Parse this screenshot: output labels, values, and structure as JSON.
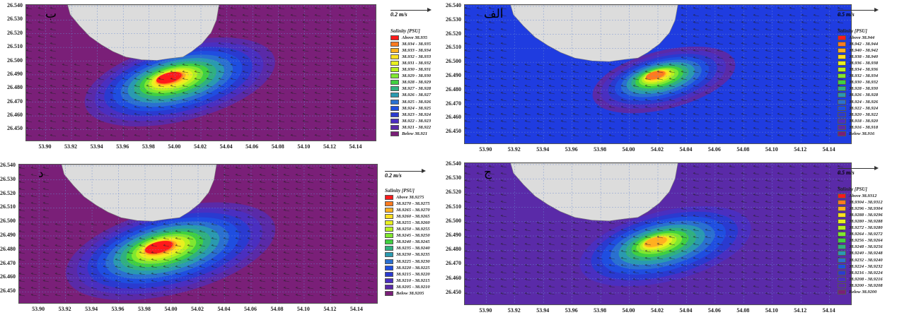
{
  "chart_data": [
    {
      "type": "heatmap",
      "panel_label": "ب",
      "xtick_labels": [
        "53.90",
        "53.92",
        "53.94",
        "53.96",
        "53.98",
        "54.00",
        "54.02",
        "54.04",
        "54.06",
        "54.08",
        "54.10",
        "54.12",
        "54.14"
      ],
      "ytick_labels": [
        "26.540",
        "26.530",
        "26.520",
        "26.510",
        "26.500",
        "26.490",
        "26.480",
        "26.470",
        "26.460",
        "26.450"
      ],
      "xlim": [
        53.885,
        54.155
      ],
      "ylim": [
        26.442,
        26.541
      ],
      "background_color": "#7a1f78",
      "hotspot": {
        "x": 53.995,
        "y": 26.488,
        "peak_level": 1.0,
        "spread": 1.0
      },
      "arrow_scale_label": "0.2 m/s",
      "legend_title": "Salinity [PSU]",
      "legend_entries": [
        "Above 38.935",
        "38.934 - 38.935",
        "38.933 - 38.934",
        "38.932 - 38.933",
        "38.931 - 38.932",
        "38.930 - 38.931",
        "38.929 - 38.930",
        "38.928 - 38.929",
        "38.927 - 38.928",
        "38.926 - 38.927",
        "38.925 - 38.926",
        "38.924 - 38.925",
        "38.923 - 38.924",
        "38.922 - 38.923",
        "38.921 - 38.922",
        "Below 38.921"
      ]
    },
    {
      "type": "heatmap",
      "panel_label": "الف",
      "xtick_labels": [
        "53.90",
        "53.92",
        "53.94",
        "53.96",
        "53.98",
        "54.00",
        "54.02",
        "54.04",
        "54.06",
        "54.08",
        "54.10",
        "54.12",
        "54.14"
      ],
      "ytick_labels": [
        "26.540",
        "26.530",
        "26.520",
        "26.510",
        "26.500",
        "26.490",
        "26.480",
        "26.470",
        "26.460",
        "26.450"
      ],
      "xlim": [
        53.885,
        54.155
      ],
      "ylim": [
        26.442,
        26.541
      ],
      "background_color": "#1f3ce0",
      "hotspot": {
        "x": 54.018,
        "y": 26.491,
        "peak_level": 0.85,
        "spread": 0.75
      },
      "arrow_scale_label": "0.5 m/s",
      "legend_title": "Salinity [PSU]",
      "legend_entries": [
        "Above 38.944",
        "38.942 - 38.944",
        "38.940 - 38.942",
        "38.938 - 38.940",
        "38.936 - 38.938",
        "38.934 - 38.936",
        "38.932 - 38.934",
        "38.930 - 38.932",
        "38.928 - 38.930",
        "38.926 - 38.928",
        "38.924 - 38.926",
        "38.922 - 38.924",
        "38.920 - 38.922",
        "38.918 - 38.920",
        "38.916 - 38.918",
        "Below 38.916"
      ]
    },
    {
      "type": "heatmap",
      "panel_label": "د",
      "xtick_labels": [
        "53.90",
        "53.92",
        "53.94",
        "53.96",
        "53.98",
        "54.00",
        "54.02",
        "54.04",
        "54.06",
        "54.08",
        "54.10",
        "54.12",
        "54.14"
      ],
      "ytick_labels": [
        "26.540",
        "26.530",
        "26.520",
        "26.510",
        "26.500",
        "26.490",
        "26.480",
        "26.470",
        "26.460",
        "26.450"
      ],
      "xlim": [
        53.885,
        54.155
      ],
      "ylim": [
        26.442,
        26.541
      ],
      "background_color": "#7a1f78",
      "hotspot": {
        "x": 53.99,
        "y": 26.482,
        "peak_level": 1.0,
        "spread": 1.1
      },
      "arrow_scale_label": "0.2 m/s",
      "legend_title": "Salinity [PSU]",
      "legend_entries": [
        "Above 38.9275",
        "38.9270 - 38.9275",
        "38.9265 - 38.9270",
        "38.9260 - 38.9265",
        "38.9255 - 38.9260",
        "38.9250 - 38.9255",
        "38.9245 - 38.9250",
        "38.9240 - 38.9245",
        "38.9235 - 38.9240",
        "38.9230 - 38.9235",
        "38.9225 - 38.9230",
        "38.9220 - 38.9225",
        "38.9215 - 38.9220",
        "38.9210 - 38.9215",
        "38.9205 - 38.9210",
        "Below 38.9205"
      ]
    },
    {
      "type": "heatmap",
      "panel_label": "ج",
      "xtick_labels": [
        "53.90",
        "53.92",
        "53.94",
        "53.96",
        "53.98",
        "54.00",
        "54.02",
        "54.04",
        "54.06",
        "54.08",
        "54.10",
        "54.12",
        "54.14"
      ],
      "ytick_labels": [
        "26.540",
        "26.530",
        "26.520",
        "26.510",
        "26.500",
        "26.490",
        "26.480",
        "26.470",
        "26.460",
        "26.450"
      ],
      "xlim": [
        53.885,
        54.155
      ],
      "ylim": [
        26.442,
        26.541
      ],
      "background_color": "#5a2aa8",
      "hotspot": {
        "x": 54.018,
        "y": 26.486,
        "peak_level": 0.75,
        "spread": 0.9
      },
      "arrow_scale_label": "0.5 m/s",
      "legend_title": "Salinity [PSU]",
      "legend_entries": [
        "Above 38.9312",
        "38.9304 - 38.9312",
        "38.9296 - 38.9304",
        "38.9288 - 38.9296",
        "38.9280 - 38.9288",
        "38.9272 - 38.9280",
        "38.9264 - 38.9272",
        "38.9256 - 38.9264",
        "38.9248 - 38.9256",
        "38.9240 - 38.9248",
        "38.9232 - 38.9240",
        "38.9224 - 38.9232",
        "38.9216 - 38.9224",
        "38.9208 - 38.9216",
        "38.9200 - 38.9208",
        "Below 38.9200"
      ]
    }
  ],
  "legend_colors": [
    "#ff1a1a",
    "#ff7a1f",
    "#ffb020",
    "#ffe020",
    "#e8f020",
    "#b8f020",
    "#80e830",
    "#40d040",
    "#30b080",
    "#2a9ab0",
    "#2a70d0",
    "#1f4ee0",
    "#2a3ad0",
    "#4a2fc0",
    "#5a2aa8",
    "#7a1f78"
  ],
  "land_color": "#dcdcdc",
  "grid_color": "#6a8ad0"
}
